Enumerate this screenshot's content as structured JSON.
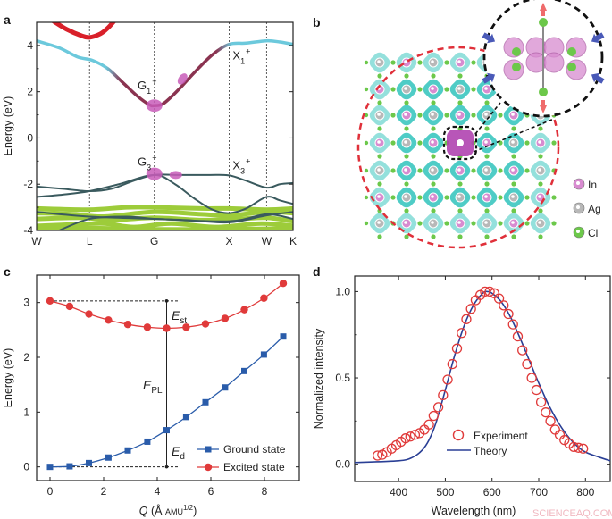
{
  "panels": {
    "a": "a",
    "b": "b",
    "c": "c",
    "d": "d"
  },
  "watermark": "SCIENCEAQ.COM",
  "chart_data": [
    {
      "panel": "a",
      "type": "line",
      "ylabel": "Energy (eV)",
      "ylim": [
        -4,
        5
      ],
      "yticks": [
        -4,
        -2,
        0,
        2,
        4
      ],
      "xticks": [
        {
          "label": "W",
          "k": 0
        },
        {
          "label": "L",
          "k": 0.707
        },
        {
          "label": "G",
          "k": 1.573
        },
        {
          "label": "X",
          "k": 2.573
        },
        {
          "label": "W",
          "k": 3.073
        },
        {
          "label": "K",
          "k": 3.427
        }
      ],
      "xlim": [
        0,
        3.427
      ],
      "colors": {
        "upper_cb": "#d9202a",
        "cb": "#6cc9dc",
        "cb_mid": "#8a3350",
        "vb": "#3a5a5e",
        "deep": "#9dcc3a",
        "blob": "#c85cb8"
      },
      "bands": [
        {
          "role": "upper_cb",
          "points": [
            [
              0.2,
              5.1
            ],
            [
              0.4,
              4.7
            ],
            [
              0.6,
              4.42
            ],
            [
              0.707,
              4.35
            ],
            [
              0.85,
              4.5
            ],
            [
              0.95,
              4.75
            ],
            [
              1.05,
              5.1
            ]
          ]
        },
        {
          "role": "cb",
          "points": [
            [
              0,
              4.2
            ],
            [
              0.3,
              3.9
            ],
            [
              0.55,
              3.5
            ],
            [
              0.75,
              3.35
            ],
            [
              0.95,
              3.0
            ],
            [
              1.15,
              2.4
            ],
            [
              1.35,
              1.8
            ],
            [
              1.5,
              1.45
            ],
            [
              1.573,
              1.4
            ],
            [
              1.7,
              1.5
            ],
            [
              1.9,
              2.1
            ],
            [
              2.1,
              2.8
            ],
            [
              2.35,
              3.6
            ],
            [
              2.573,
              4.05
            ],
            [
              2.8,
              4.1
            ],
            [
              3.073,
              4.2
            ],
            [
              3.25,
              4.15
            ],
            [
              3.427,
              4.05
            ]
          ]
        },
        {
          "role": "vb",
          "points": [
            [
              0,
              -2.1
            ],
            [
              0.35,
              -2.2
            ],
            [
              0.707,
              -2.3
            ],
            [
              1.0,
              -2.2
            ],
            [
              1.3,
              -1.85
            ],
            [
              1.573,
              -1.6
            ],
            [
              1.9,
              -1.6
            ],
            [
              2.3,
              -1.6
            ],
            [
              2.573,
              -1.62
            ],
            [
              2.8,
              -1.85
            ],
            [
              3.073,
              -2.15
            ],
            [
              3.25,
              -2.0
            ],
            [
              3.427,
              -1.95
            ]
          ]
        },
        {
          "role": "vb",
          "points": [
            [
              0,
              -2.55
            ],
            [
              0.35,
              -2.45
            ],
            [
              0.707,
              -2.3
            ],
            [
              1.1,
              -2.0
            ],
            [
              1.573,
              -1.6
            ],
            [
              1.85,
              -2.0
            ],
            [
              2.1,
              -2.6
            ],
            [
              2.35,
              -3.1
            ],
            [
              2.573,
              -3.25
            ],
            [
              2.8,
              -3.05
            ],
            [
              3.073,
              -2.55
            ],
            [
              3.25,
              -2.7
            ],
            [
              3.427,
              -2.85
            ]
          ]
        },
        {
          "role": "deep",
          "points": [
            [
              0,
              -3.05
            ],
            [
              0.7,
              -3.1
            ],
            [
              1.2,
              -3.0
            ],
            [
              1.573,
              -3.0
            ],
            [
              2.2,
              -3.05
            ],
            [
              2.573,
              -3.05
            ],
            [
              3.073,
              -3.1
            ],
            [
              3.427,
              -3.05
            ]
          ]
        },
        {
          "role": "deep",
          "points": [
            [
              0,
              -3.25
            ],
            [
              0.5,
              -3.3
            ],
            [
              0.9,
              -3.4
            ],
            [
              1.573,
              -3.2
            ],
            [
              2.2,
              -3.3
            ],
            [
              2.573,
              -3.35
            ],
            [
              3.073,
              -3.2
            ],
            [
              3.427,
              -3.25
            ]
          ]
        },
        {
          "role": "deep",
          "points": [
            [
              0,
              -3.5
            ],
            [
              0.6,
              -3.45
            ],
            [
              1.0,
              -3.55
            ],
            [
              1.573,
              -3.45
            ],
            [
              2.2,
              -3.55
            ],
            [
              2.7,
              -3.5
            ],
            [
              3.073,
              -3.45
            ],
            [
              3.427,
              -3.6
            ]
          ]
        },
        {
          "role": "deep",
          "points": [
            [
              0,
              -3.8
            ],
            [
              0.4,
              -3.75
            ],
            [
              0.9,
              -3.7
            ],
            [
              1.3,
              -3.85
            ],
            [
              1.8,
              -3.7
            ],
            [
              2.4,
              -3.85
            ],
            [
              3.0,
              -3.7
            ],
            [
              3.427,
              -3.8
            ]
          ]
        },
        {
          "role": "deep",
          "points": [
            [
              0,
              -3.95
            ],
            [
              0.707,
              -3.9
            ],
            [
              1.573,
              -3.95
            ],
            [
              2.573,
              -3.95
            ],
            [
              3.427,
              -3.9
            ]
          ]
        },
        {
          "role": "vb",
          "points": [
            [
              0,
              -3.2
            ],
            [
              0.707,
              -3.4
            ],
            [
              1.573,
              -3.5
            ],
            [
              2.573,
              -3.6
            ],
            [
              3.073,
              -3.3
            ],
            [
              3.427,
              -3.5
            ]
          ]
        },
        {
          "role": "vb",
          "points": [
            [
              0.3,
              -4.0
            ],
            [
              0.707,
              -3.5
            ],
            [
              1.2,
              -3.4
            ],
            [
              1.573,
              -3.5
            ],
            [
              2.0,
              -3.55
            ],
            [
              2.573,
              -3.65
            ],
            [
              3.073,
              -3.35
            ],
            [
              3.427,
              -3.2
            ]
          ]
        }
      ],
      "blobs": [
        [
          1.573,
          1.4
        ],
        [
          1.95,
          2.55
        ],
        [
          1.573,
          -1.55
        ],
        [
          1.86,
          -1.6
        ]
      ],
      "labels": [
        {
          "base": "G",
          "sub": "1",
          "sup": "+",
          "k": 1.35,
          "E": 2.1
        },
        {
          "base": "X",
          "sub": "1",
          "sup": "+",
          "k": 2.62,
          "E": 3.4
        },
        {
          "base": "G",
          "sub": "3",
          "sup": "+",
          "k": 1.35,
          "E": -1.2
        },
        {
          "base": "X",
          "sub": "3",
          "sup": "+",
          "k": 2.62,
          "E": -1.35
        }
      ]
    },
    {
      "panel": "c",
      "type": "line",
      "xlabel": {
        "main": "Q",
        "pre": " (Å ",
        "unit": "AMU",
        "sup": "1/2",
        "post": ")"
      },
      "ylabel": "Energy (eV)",
      "xlim": [
        -0.5,
        9.3
      ],
      "ylim": [
        -0.25,
        3.5
      ],
      "xticks": [
        0,
        2,
        4,
        6,
        8
      ],
      "yticks": [
        0,
        1,
        2,
        3
      ],
      "x": [
        0,
        0.73,
        1.45,
        2.18,
        2.9,
        3.63,
        4.35,
        5.08,
        5.8,
        6.53,
        7.25,
        7.98,
        8.7
      ],
      "series": [
        {
          "name": "Ground state",
          "marker": "square",
          "color": "#2a5caa",
          "values": [
            0,
            0.01,
            0.07,
            0.17,
            0.3,
            0.46,
            0.67,
            0.91,
            1.18,
            1.45,
            1.75,
            2.05,
            2.38
          ]
        },
        {
          "name": "Excited state",
          "marker": "circle",
          "color": "#e03a3a",
          "values": [
            3.03,
            2.93,
            2.79,
            2.68,
            2.6,
            2.55,
            2.53,
            2.55,
            2.61,
            2.71,
            2.87,
            3.08,
            3.35
          ]
        }
      ],
      "annotations": {
        "E_st": {
          "main": "E",
          "sub": "st"
        },
        "E_PL": {
          "main": "E",
          "sub": "PL"
        },
        "E_d": {
          "main": "E",
          "sub": "d"
        }
      },
      "legend": "bottom-right"
    },
    {
      "panel": "d",
      "type": "scatter",
      "xlabel": "Wavelength (nm)",
      "ylabel": "Normalized intensity",
      "xlim": [
        306,
        853
      ],
      "ylim": [
        -0.1,
        1.09
      ],
      "xticks": [
        400,
        500,
        600,
        700,
        800
      ],
      "yticks": [
        "0.0",
        "0.5",
        "1.0"
      ],
      "series": [
        {
          "name": "Experiment",
          "marker": "open-circle",
          "color": "#e03a3a",
          "x": [
            355,
            365,
            375,
            385,
            395,
            405,
            415,
            425,
            435,
            445,
            455,
            465,
            475,
            485,
            495,
            505,
            515,
            525,
            535,
            545,
            555,
            565,
            575,
            585,
            595,
            605,
            615,
            625,
            635,
            645,
            655,
            665,
            675,
            685,
            695,
            705,
            715,
            725,
            735,
            745,
            755,
            765,
            775,
            785,
            795
          ],
          "values": [
            0.05,
            0.055,
            0.07,
            0.09,
            0.11,
            0.13,
            0.15,
            0.16,
            0.17,
            0.18,
            0.2,
            0.23,
            0.28,
            0.33,
            0.4,
            0.49,
            0.58,
            0.67,
            0.76,
            0.84,
            0.9,
            0.95,
            0.98,
            1.0,
            1.0,
            0.99,
            0.96,
            0.92,
            0.87,
            0.81,
            0.74,
            0.66,
            0.58,
            0.5,
            0.43,
            0.36,
            0.3,
            0.25,
            0.2,
            0.17,
            0.14,
            0.12,
            0.1,
            0.095,
            0.09
          ]
        },
        {
          "name": "Theory",
          "marker": "line",
          "color": "#2a3f95",
          "x": [
            306,
            400,
            430,
            450,
            465,
            480,
            500,
            520,
            540,
            560,
            580,
            590,
            600,
            620,
            640,
            660,
            680,
            700,
            720,
            740,
            760,
            780,
            800,
            830,
            853
          ],
          "values": [
            0.01,
            0.02,
            0.04,
            0.08,
            0.14,
            0.24,
            0.43,
            0.63,
            0.8,
            0.92,
            0.99,
            1.0,
            0.99,
            0.94,
            0.85,
            0.73,
            0.6,
            0.47,
            0.35,
            0.25,
            0.17,
            0.11,
            0.07,
            0.04,
            0.02
          ]
        }
      ],
      "legend": "bottom-center"
    }
  ],
  "structure": {
    "legend": [
      {
        "label": "In",
        "color": "#d88bd0"
      },
      {
        "label": "Ag",
        "color": "#b8b8b8"
      },
      {
        "label": "Cl",
        "color": "#6cc84a"
      }
    ],
    "colors": {
      "density": "#3cc7c0",
      "excited": "#b044b0",
      "red_circle": "#e0303a",
      "arrow_out": "#ef6b6b",
      "arrow_in": "#4a5ab8"
    }
  }
}
